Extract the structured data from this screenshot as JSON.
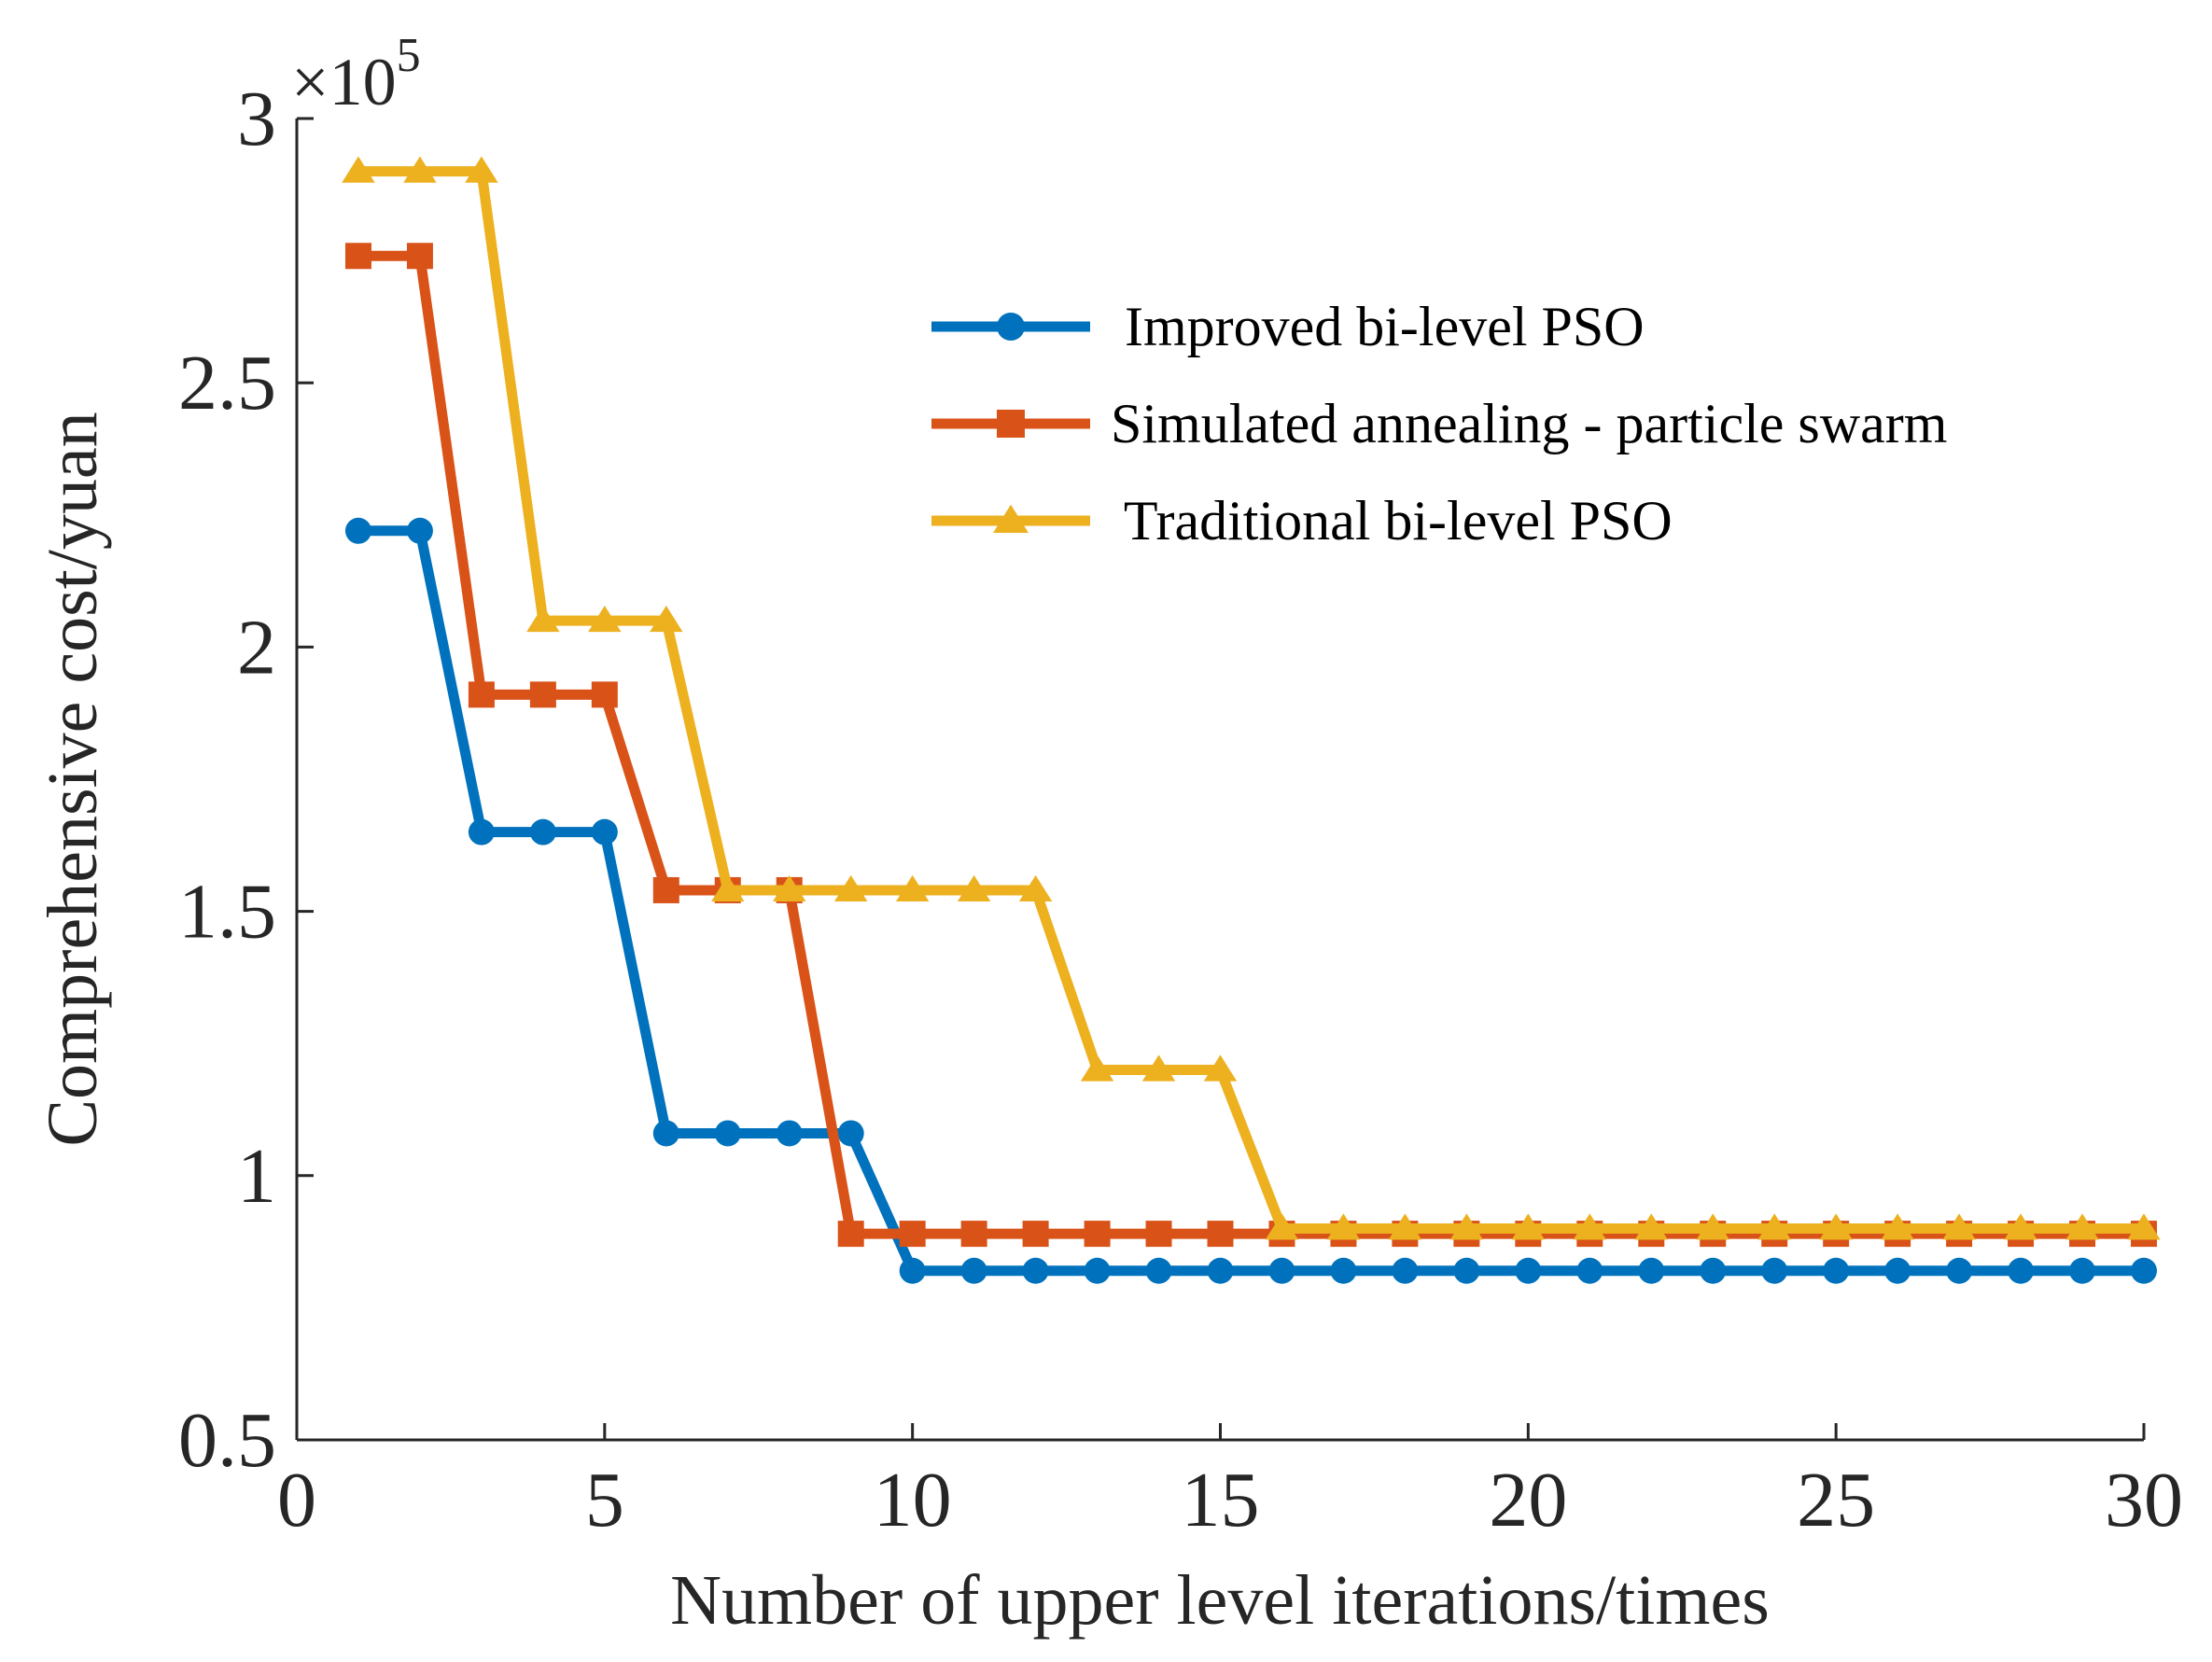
{
  "chart_data": {
    "type": "line",
    "title": "",
    "xlabel": "Number of upper level iterations/times",
    "ylabel": "Comprehensive cost/yuan",
    "y_multiplier": "×10",
    "y_multiplier_exp": "5",
    "xlim": [
      0,
      30
    ],
    "ylim": [
      0.5,
      3
    ],
    "xticks": [
      0,
      5,
      10,
      15,
      20,
      25,
      30
    ],
    "xtick_labels": [
      "0",
      "5",
      "10",
      "15",
      "20",
      "25",
      "30"
    ],
    "yticks": [
      0.5,
      1,
      1.5,
      2,
      2.5,
      3
    ],
    "ytick_labels": [
      "0.5",
      "1",
      "1.5",
      "2",
      "2.5",
      "3"
    ],
    "legend_position": "upper-right",
    "x": [
      1,
      2,
      3,
      4,
      5,
      6,
      7,
      8,
      9,
      10,
      11,
      12,
      13,
      14,
      15,
      16,
      17,
      18,
      19,
      20,
      21,
      22,
      23,
      24,
      25,
      26,
      27,
      28,
      29,
      30
    ],
    "series": [
      {
        "name": " Improved bi-level PSO",
        "color": "#0072BD",
        "marker": "circle",
        "values": [
          2.22,
          2.22,
          1.65,
          1.65,
          1.65,
          1.08,
          1.08,
          1.08,
          1.08,
          0.82,
          0.82,
          0.82,
          0.82,
          0.82,
          0.82,
          0.82,
          0.82,
          0.82,
          0.82,
          0.82,
          0.82,
          0.82,
          0.82,
          0.82,
          0.82,
          0.82,
          0.82,
          0.82,
          0.82,
          0.82
        ]
      },
      {
        "name": "Simulated annealing - particle swarm",
        "color": "#D95319",
        "marker": "square",
        "values": [
          2.74,
          2.74,
          1.91,
          1.91,
          1.91,
          1.54,
          1.54,
          1.54,
          0.89,
          0.89,
          0.89,
          0.89,
          0.89,
          0.89,
          0.89,
          0.89,
          0.89,
          0.89,
          0.89,
          0.89,
          0.89,
          0.89,
          0.89,
          0.89,
          0.89,
          0.89,
          0.89,
          0.89,
          0.89,
          0.89
        ]
      },
      {
        "name": " Traditional bi-level PSO",
        "color": "#EDB120",
        "marker": "triangle",
        "values": [
          2.9,
          2.9,
          2.9,
          2.05,
          2.05,
          2.05,
          1.54,
          1.54,
          1.54,
          1.54,
          1.54,
          1.54,
          1.2,
          1.2,
          1.2,
          0.9,
          0.9,
          0.9,
          0.9,
          0.9,
          0.9,
          0.9,
          0.9,
          0.9,
          0.9,
          0.9,
          0.9,
          0.9,
          0.9,
          0.9
        ]
      }
    ]
  }
}
